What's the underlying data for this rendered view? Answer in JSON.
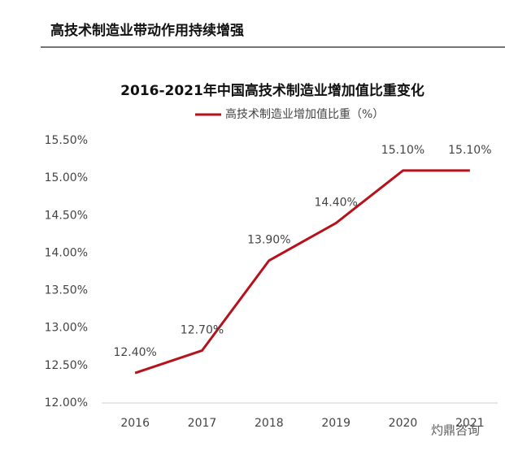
{
  "header": {
    "title": "高技术制造业带动作用持续增强"
  },
  "chart_data": {
    "type": "line",
    "title": "2016-2021年中国高技术制造业增加值比重变化",
    "categories": [
      "2016",
      "2017",
      "2018",
      "2019",
      "2020",
      "2021"
    ],
    "series": [
      {
        "name": "高技术制造业增加值比重（%）",
        "color": "#b5121b",
        "values": [
          12.4,
          12.7,
          13.9,
          14.4,
          15.1,
          15.1
        ],
        "value_labels": [
          "12.40%",
          "12.70%",
          "13.90%",
          "14.40%",
          "15.10%",
          "15.10%"
        ]
      }
    ],
    "ylim": [
      12.0,
      15.5
    ],
    "yticks": [
      {
        "value": 12.0,
        "label": "12.00%"
      },
      {
        "value": 12.5,
        "label": "12.50%"
      },
      {
        "value": 13.0,
        "label": "13.00%"
      },
      {
        "value": 13.5,
        "label": "13.50%"
      },
      {
        "value": 14.0,
        "label": "14.00%"
      },
      {
        "value": 14.5,
        "label": "14.50%"
      },
      {
        "value": 15.0,
        "label": "15.00%"
      },
      {
        "value": 15.5,
        "label": "15.50%"
      }
    ],
    "grid": false,
    "legend": "top"
  },
  "watermark": "灼鼎咨询"
}
